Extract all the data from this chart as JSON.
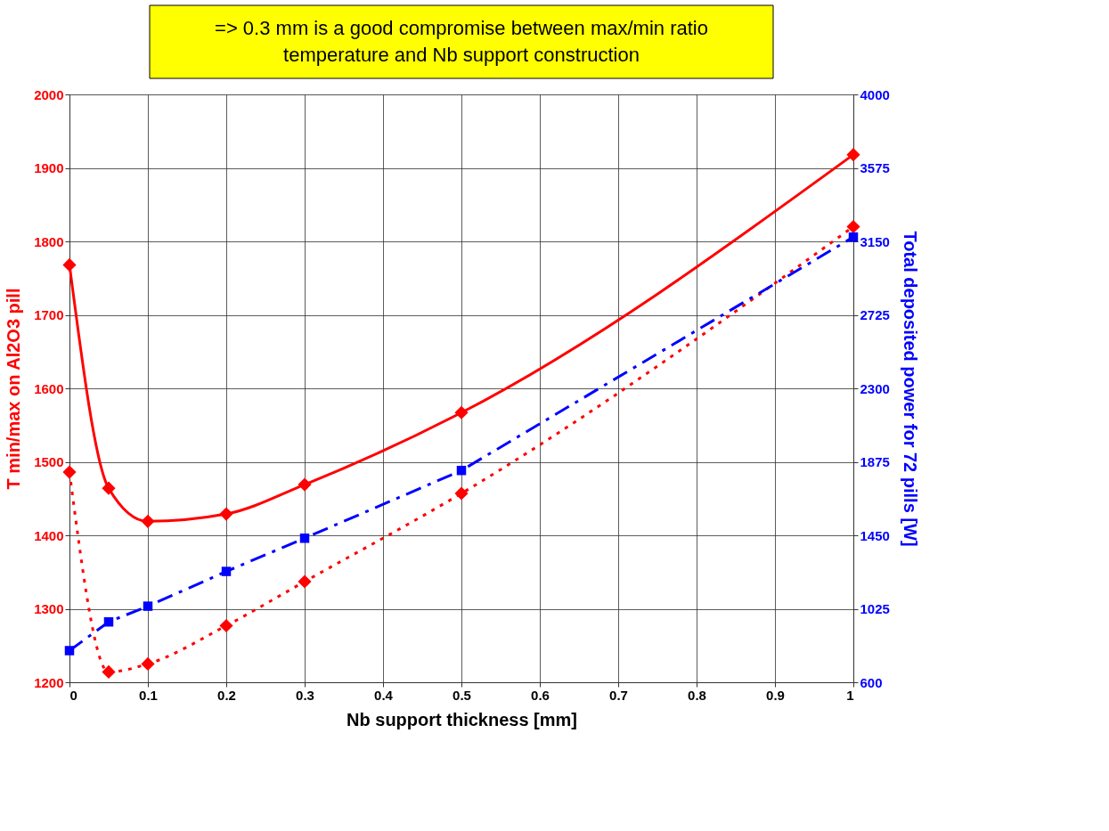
{
  "chart_data": {
    "type": "line",
    "xlabel": "Nb support thickness [mm]",
    "ylabel": "T min/max on Al2O3 pill",
    "y2label": "Total deposited power for 72 pills [W]",
    "annotations": [
      "=> 0.3 mm is a good compromise between max/min ratio\ntemperature and Nb support construction"
    ],
    "x": [
      0,
      0.05,
      0.1,
      0.2,
      0.3,
      0.5,
      1
    ],
    "series": [
      {
        "color": "#ff0000",
        "marker": "diamond",
        "line_style": "solid",
        "values": [
          1768,
          1464,
          1419,
          1429,
          1469,
          1567,
          1918
        ]
      },
      {
        "color": "#ff0000",
        "marker": "diamond",
        "line_style": "dotted",
        "values": [
          1486,
          1214,
          1225,
          1277,
          1337,
          1457,
          1820
        ]
      },
      {
        "color": "#0000ff",
        "marker": "square",
        "line_style": "dashed",
        "axis": "y2",
        "values": [
          783,
          949,
          1040,
          1241,
          1433,
          1825,
          3175
        ]
      }
    ],
    "xlim": [
      0,
      1
    ],
    "xticks": [
      0,
      0.1,
      0.2,
      0.3,
      0.4,
      0.5,
      0.6,
      0.7,
      0.8,
      0.9,
      1
    ],
    "ylim": [
      1200,
      2000
    ],
    "yticks": [
      1200,
      1300,
      1400,
      1500,
      1600,
      1700,
      1800,
      1900,
      2000
    ],
    "y2lim": [
      600,
      4000
    ],
    "y2ticks": [
      600,
      1025,
      1450,
      1875,
      2300,
      2725,
      3150,
      3575,
      4000
    ],
    "grid": true
  }
}
